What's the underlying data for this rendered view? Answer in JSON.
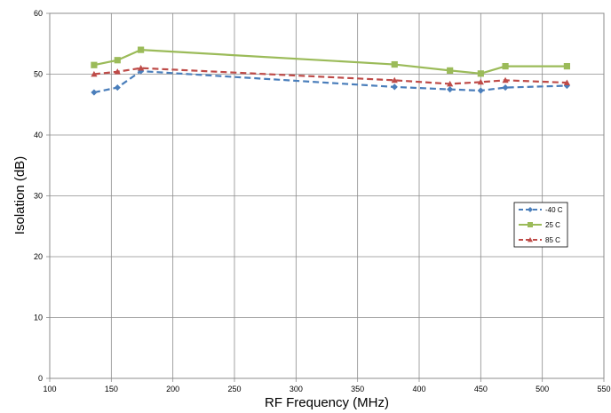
{
  "chart_data": {
    "type": "line",
    "xlabel": "RF Frequency (MHz)",
    "ylabel": "Isolation (dB)",
    "xlim": [
      100,
      550
    ],
    "ylim": [
      0,
      60
    ],
    "x_ticks": [
      100,
      150,
      200,
      250,
      300,
      350,
      400,
      450,
      500,
      550
    ],
    "y_ticks": [
      0,
      10,
      20,
      30,
      40,
      50,
      60
    ],
    "grid": true,
    "legend_position": "right",
    "series": [
      {
        "name": "-40 C",
        "color": "#4a7ebb",
        "dash": "dashed",
        "marker": "diamond",
        "points": [
          [
            136,
            47.0
          ],
          [
            155,
            47.8
          ],
          [
            174,
            50.5
          ],
          [
            380,
            47.9
          ],
          [
            425,
            47.5
          ],
          [
            450,
            47.3
          ],
          [
            470,
            47.8
          ],
          [
            520,
            48.1
          ]
        ]
      },
      {
        "name": "25 C",
        "color": "#9bbb59",
        "dash": "solid",
        "marker": "square",
        "points": [
          [
            136,
            51.5
          ],
          [
            155,
            52.3
          ],
          [
            174,
            54.0
          ],
          [
            380,
            51.6
          ],
          [
            425,
            50.6
          ],
          [
            450,
            50.1
          ],
          [
            470,
            51.3
          ],
          [
            520,
            51.3
          ]
        ]
      },
      {
        "name": "85 C",
        "color": "#be4b48",
        "dash": "dashed",
        "marker": "triangle",
        "points": [
          [
            136,
            50.0
          ],
          [
            155,
            50.4
          ],
          [
            174,
            51.0
          ],
          [
            380,
            49.0
          ],
          [
            425,
            48.4
          ],
          [
            450,
            48.7
          ],
          [
            470,
            49.0
          ],
          [
            520,
            48.6
          ]
        ]
      }
    ]
  }
}
